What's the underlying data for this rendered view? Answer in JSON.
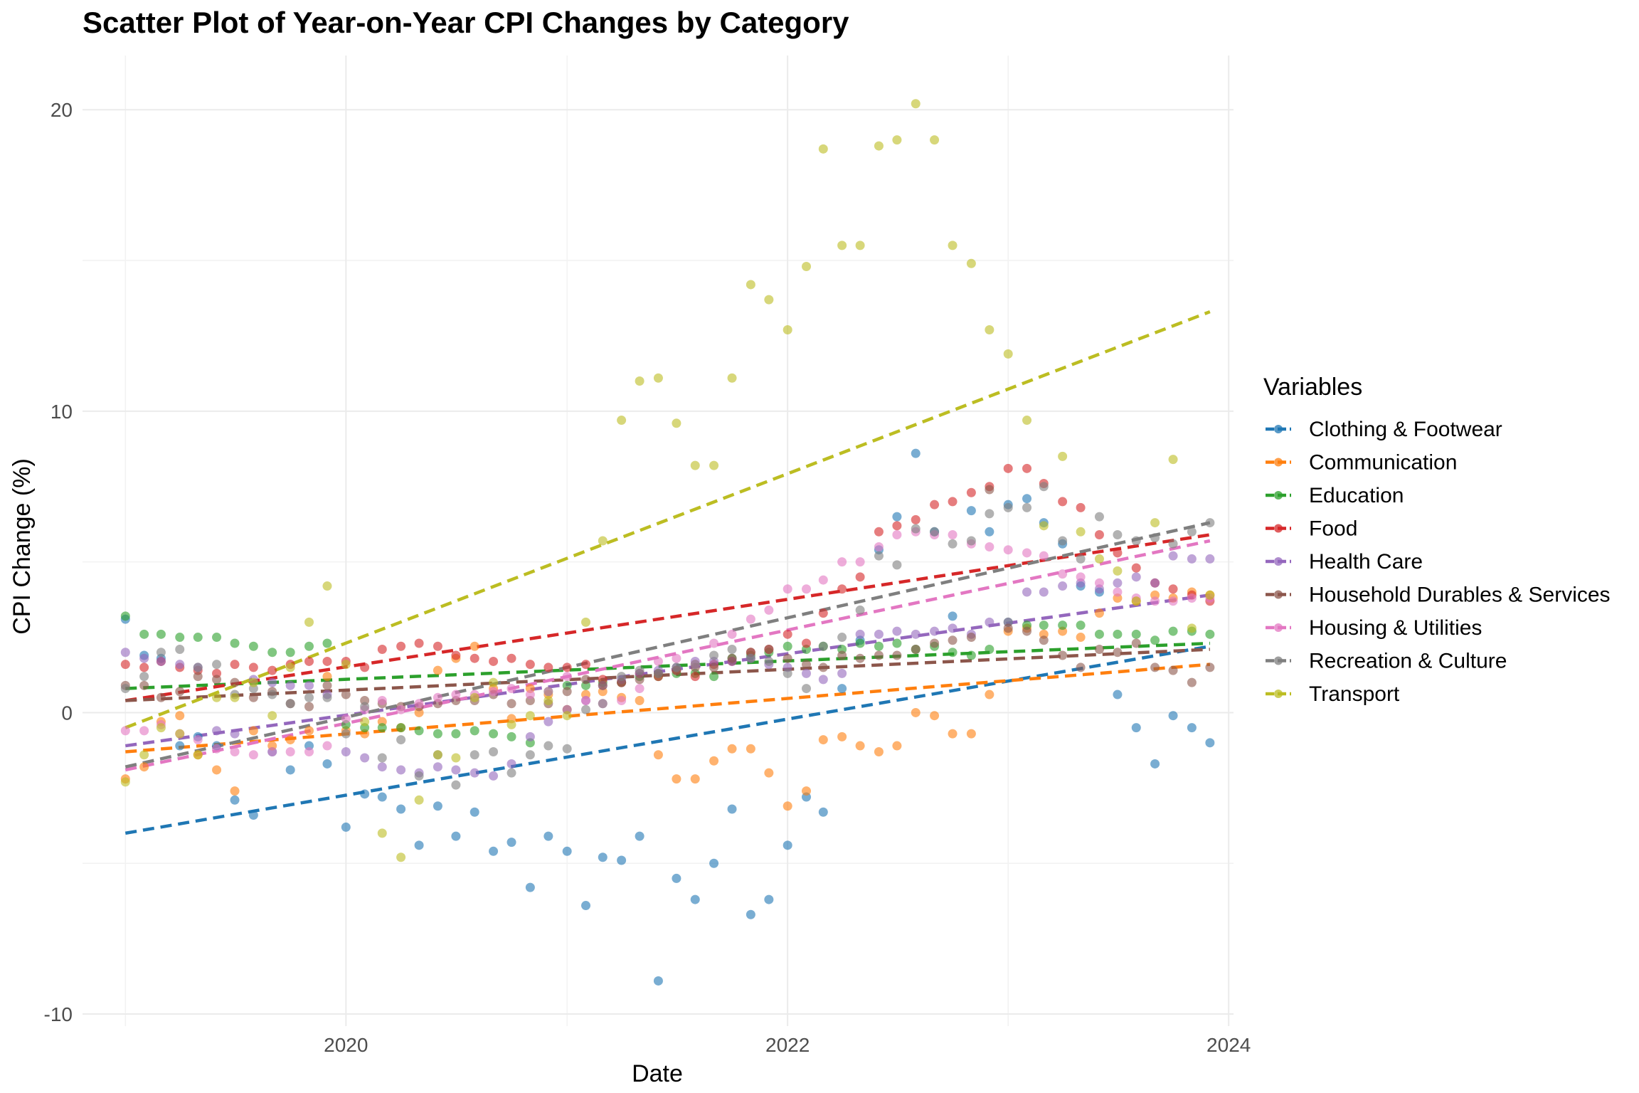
{
  "chart_data": {
    "type": "scatter",
    "title": "Scatter Plot of Year-on-Year CPI Changes by Category",
    "xlabel": "Date",
    "ylabel": "CPI Change (%)",
    "legend_title": "Variables",
    "legend_position": "right",
    "grid": true,
    "xlim": [
      "2018-10-22",
      "2024-01-09"
    ],
    "ylim": [
      -10.4,
      21.8
    ],
    "x_ticks": [
      "2020",
      "2022",
      "2024"
    ],
    "y_ticks": [
      "-10",
      "0",
      "10",
      "20"
    ],
    "x": [
      "2019-01",
      "2019-02",
      "2019-03",
      "2019-04",
      "2019-05",
      "2019-06",
      "2019-07",
      "2019-08",
      "2019-09",
      "2019-10",
      "2019-11",
      "2019-12",
      "2020-01",
      "2020-02",
      "2020-03",
      "2020-04",
      "2020-05",
      "2020-06",
      "2020-07",
      "2020-08",
      "2020-09",
      "2020-10",
      "2020-11",
      "2020-12",
      "2021-01",
      "2021-02",
      "2021-03",
      "2021-04",
      "2021-05",
      "2021-06",
      "2021-07",
      "2021-08",
      "2021-09",
      "2021-10",
      "2021-11",
      "2021-12",
      "2022-01",
      "2022-02",
      "2022-03",
      "2022-04",
      "2022-05",
      "2022-06",
      "2022-07",
      "2022-08",
      "2022-09",
      "2022-10",
      "2022-11",
      "2022-12",
      "2023-01",
      "2023-02",
      "2023-03",
      "2023-04",
      "2023-05",
      "2023-06",
      "2023-07",
      "2023-08",
      "2023-09",
      "2023-10",
      "2023-11",
      "2023-12"
    ],
    "series": [
      {
        "name": "Clothing & Footwear",
        "color": "#1f77b4",
        "trend": [
          -4.0,
          2.2
        ],
        "values": [
          3.1,
          1.9,
          1.8,
          -1.1,
          -0.8,
          -1.1,
          -2.9,
          -3.4,
          -1.3,
          -1.9,
          -1.1,
          -1.7,
          -3.8,
          -2.7,
          -2.8,
          -3.2,
          -4.4,
          -3.1,
          -4.1,
          -3.3,
          -4.6,
          -4.3,
          -5.8,
          -4.1,
          -4.6,
          -6.4,
          -4.8,
          -4.9,
          -4.1,
          -8.9,
          -5.5,
          -6.2,
          -5.0,
          -3.2,
          -6.7,
          -6.2,
          -4.4,
          -2.8,
          -3.3,
          0.8,
          2.4,
          5.4,
          6.5,
          8.6,
          6.0,
          3.2,
          6.7,
          6.0,
          6.9,
          7.1,
          6.3,
          5.6,
          4.2,
          4.0,
          0.6,
          -0.5,
          -1.7,
          -0.1,
          -0.5,
          -1.0
        ]
      },
      {
        "name": "Communication",
        "color": "#ff7f0e",
        "trend": [
          -1.3,
          1.6
        ],
        "values": [
          -2.2,
          -1.8,
          -0.3,
          -0.1,
          -1.4,
          -1.9,
          -2.6,
          -0.6,
          -1.1,
          -0.9,
          -0.6,
          1.2,
          -0.6,
          -0.7,
          -0.3,
          -0.5,
          0.0,
          1.4,
          1.8,
          2.2,
          0.8,
          -0.2,
          0.8,
          0.6,
          0.1,
          0.6,
          0.7,
          0.5,
          0.4,
          -1.4,
          -2.2,
          -2.2,
          -1.6,
          -1.2,
          -1.2,
          -2.0,
          -3.1,
          -2.6,
          -0.9,
          -0.8,
          -1.1,
          -1.3,
          -1.1,
          0.0,
          -0.1,
          -0.7,
          -0.7,
          0.6,
          2.7,
          2.8,
          2.6,
          2.7,
          2.5,
          3.3,
          3.8,
          3.7,
          3.9,
          3.8,
          4.0,
          3.9
        ]
      },
      {
        "name": "Education",
        "color": "#2ca02c",
        "trend": [
          0.8,
          2.3
        ],
        "values": [
          3.2,
          2.6,
          2.6,
          2.5,
          2.5,
          2.5,
          2.3,
          2.2,
          2.0,
          2.0,
          2.2,
          2.3,
          -0.4,
          -0.5,
          -0.5,
          -0.5,
          -0.6,
          -0.7,
          -0.7,
          -0.6,
          -0.7,
          -0.8,
          -1.0,
          0.7,
          0.9,
          0.9,
          1.0,
          1.0,
          1.2,
          1.2,
          1.3,
          1.3,
          1.2,
          1.8,
          1.9,
          2.0,
          2.2,
          2.1,
          2.2,
          2.1,
          2.3,
          2.2,
          2.3,
          2.1,
          2.2,
          2.0,
          1.9,
          2.1,
          3.0,
          2.9,
          2.9,
          2.9,
          2.9,
          2.6,
          2.6,
          2.6,
          2.4,
          2.7,
          2.7,
          2.6
        ]
      },
      {
        "name": "Food",
        "color": "#d62728",
        "trend": [
          0.4,
          5.9
        ],
        "values": [
          1.6,
          1.5,
          1.7,
          1.5,
          1.4,
          1.3,
          1.6,
          1.5,
          1.4,
          1.6,
          1.7,
          1.7,
          1.7,
          1.5,
          2.1,
          2.2,
          2.3,
          2.2,
          1.9,
          1.8,
          1.7,
          1.8,
          1.6,
          1.5,
          1.5,
          1.6,
          1.1,
          1.0,
          1.3,
          1.2,
          1.4,
          1.2,
          1.6,
          1.7,
          2.0,
          2.1,
          2.6,
          2.3,
          3.3,
          4.1,
          4.5,
          6.0,
          6.2,
          6.4,
          6.9,
          7.0,
          7.3,
          7.5,
          8.1,
          8.1,
          7.6,
          7.0,
          6.8,
          5.9,
          5.3,
          4.8,
          4.3,
          4.1,
          3.9,
          3.7
        ]
      },
      {
        "name": "Health Care",
        "color": "#9467bd",
        "trend": [
          -1.1,
          3.9
        ],
        "values": [
          2.0,
          1.8,
          1.7,
          1.6,
          1.5,
          -0.6,
          -0.7,
          1.1,
          1.0,
          0.9,
          0.9,
          0.6,
          -1.3,
          -1.5,
          -1.8,
          -1.9,
          -2.0,
          -1.8,
          -1.9,
          -2.0,
          -2.1,
          -1.7,
          -0.8,
          -0.3,
          0.1,
          0.4,
          0.9,
          1.1,
          1.3,
          1.4,
          1.5,
          1.7,
          1.7,
          1.7,
          1.8,
          1.6,
          1.5,
          1.3,
          1.1,
          1.3,
          2.6,
          2.6,
          2.7,
          2.6,
          2.7,
          2.8,
          2.6,
          3.0,
          3.0,
          4.0,
          4.0,
          4.2,
          4.3,
          4.1,
          4.3,
          4.5,
          4.3,
          5.2,
          5.1,
          5.1
        ]
      },
      {
        "name": "Household Durables & Services",
        "color": "#8c564b",
        "trend": [
          0.4,
          2.1
        ],
        "values": [
          0.9,
          0.9,
          0.5,
          0.7,
          1.2,
          1.1,
          1.0,
          0.5,
          0.7,
          0.3,
          0.2,
          0.9,
          0.6,
          0.4,
          0.3,
          0.2,
          0.2,
          0.3,
          0.4,
          0.4,
          0.6,
          0.3,
          0.4,
          0.3,
          0.7,
          1.1,
          0.9,
          1.0,
          1.1,
          1.3,
          1.4,
          1.5,
          1.5,
          1.8,
          2.0,
          2.1,
          1.8,
          1.6,
          1.5,
          1.9,
          1.8,
          1.9,
          1.9,
          2.1,
          2.3,
          2.4,
          2.5,
          7.4,
          2.8,
          2.7,
          2.4,
          1.9,
          1.5,
          2.1,
          2.0,
          2.3,
          1.5,
          1.4,
          1.0,
          1.5
        ]
      },
      {
        "name": "Housing & Utilities",
        "color": "#e377c2",
        "trend": [
          -1.9,
          5.7
        ],
        "values": [
          -0.6,
          -0.6,
          -0.4,
          -0.7,
          -0.9,
          -1.2,
          -1.3,
          -1.4,
          -1.3,
          -1.3,
          -1.3,
          -1.1,
          -0.2,
          0.1,
          0.4,
          0.1,
          0.3,
          0.5,
          0.6,
          0.6,
          0.7,
          0.8,
          0.6,
          0.7,
          1.2,
          0.4,
          0.3,
          0.4,
          0.8,
          1.7,
          1.8,
          1.6,
          2.3,
          2.6,
          3.1,
          3.4,
          4.1,
          4.1,
          4.4,
          5.0,
          5.0,
          5.5,
          5.9,
          6.0,
          5.9,
          5.9,
          5.6,
          5.5,
          5.4,
          5.3,
          5.2,
          4.6,
          4.5,
          4.3,
          4.0,
          3.8,
          3.7,
          3.7,
          3.8,
          3.8
        ]
      },
      {
        "name": "Recreation & Culture",
        "color": "#7f7f7f",
        "trend": [
          -1.8,
          6.3
        ],
        "values": [
          0.8,
          1.2,
          2.0,
          2.1,
          1.5,
          1.6,
          0.6,
          0.8,
          0.6,
          0.3,
          0.5,
          0.5,
          -0.7,
          0.2,
          -1.5,
          -0.9,
          -2.1,
          -1.4,
          -2.4,
          -1.4,
          -1.3,
          -2.0,
          -1.4,
          -1.1,
          -1.2,
          0.1,
          0.3,
          1.2,
          1.4,
          1.3,
          1.5,
          1.6,
          1.9,
          2.1,
          1.8,
          1.7,
          1.3,
          0.8,
          2.2,
          2.5,
          3.4,
          5.2,
          4.9,
          6.1,
          6.0,
          5.6,
          5.7,
          6.6,
          6.8,
          6.8,
          7.5,
          5.7,
          5.1,
          6.5,
          5.9,
          5.7,
          5.8,
          5.6,
          6.0,
          6.3
        ]
      },
      {
        "name": "Transport",
        "color": "#bcbd22",
        "trend": [
          -0.5,
          13.3
        ],
        "values": [
          -2.3,
          -1.4,
          -0.5,
          -0.7,
          -1.4,
          0.5,
          0.5,
          1.0,
          -0.1,
          1.5,
          3.0,
          4.2,
          1.6,
          -0.3,
          -4.0,
          -4.8,
          -2.9,
          -1.4,
          -1.5,
          0.5,
          1.0,
          -0.4,
          -0.1,
          0.4,
          -0.1,
          3.0,
          5.7,
          9.7,
          11.0,
          11.1,
          9.6,
          8.2,
          8.2,
          11.1,
          14.2,
          13.7,
          12.7,
          14.8,
          18.7,
          15.5,
          15.5,
          18.8,
          19.0,
          20.2,
          19.0,
          15.5,
          14.9,
          12.7,
          11.9,
          9.7,
          6.2,
          8.5,
          6.0,
          5.1,
          4.7,
          3.7,
          6.3,
          8.4,
          2.8,
          3.9
        ]
      }
    ]
  }
}
